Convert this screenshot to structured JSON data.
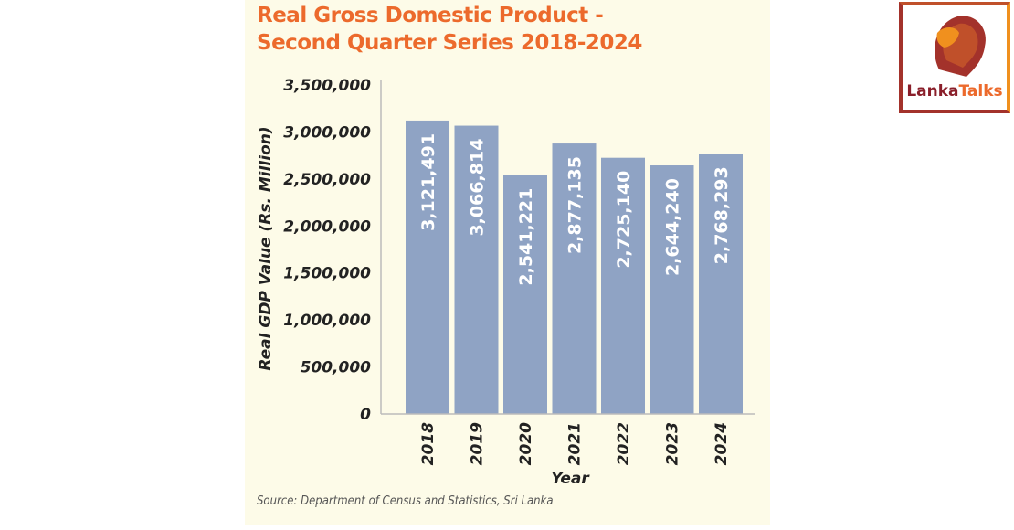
{
  "chart_data": {
    "type": "bar",
    "title": "Real Gross Domestic Product -",
    "subtitle": "Second Quarter Series 2018-2024",
    "categories": [
      "2018",
      "2019",
      "2020",
      "2021",
      "2022",
      "2023",
      "2024"
    ],
    "values": [
      3121491,
      3066814,
      2541221,
      2877135,
      2725140,
      2644240,
      2768293
    ],
    "value_labels": [
      "3,121,491",
      "3,066,814",
      "2,541,221",
      "2,877,135",
      "2,725,140",
      "2,644,240",
      "2,768,293"
    ],
    "xlabel": "Year",
    "ylabel": "Real GDP Value (Rs. Million)",
    "ylim": [
      0,
      3500000
    ],
    "yticks": [
      "0",
      "500,000",
      "1,000,000",
      "1,500,000",
      "2,000,000",
      "2,500,000",
      "3,000,000",
      "3,500,000"
    ],
    "grid": false,
    "bar_color": "#8fa3c4",
    "title_color": "#ec6a2c",
    "background_color": "#fdfbe8"
  },
  "source": "Source: Department of Census and Statistics, Sri Lanka",
  "logo": {
    "brand_part1": "Lanka",
    "brand_part2": "Talks",
    "icon": "lion-head-icon"
  }
}
